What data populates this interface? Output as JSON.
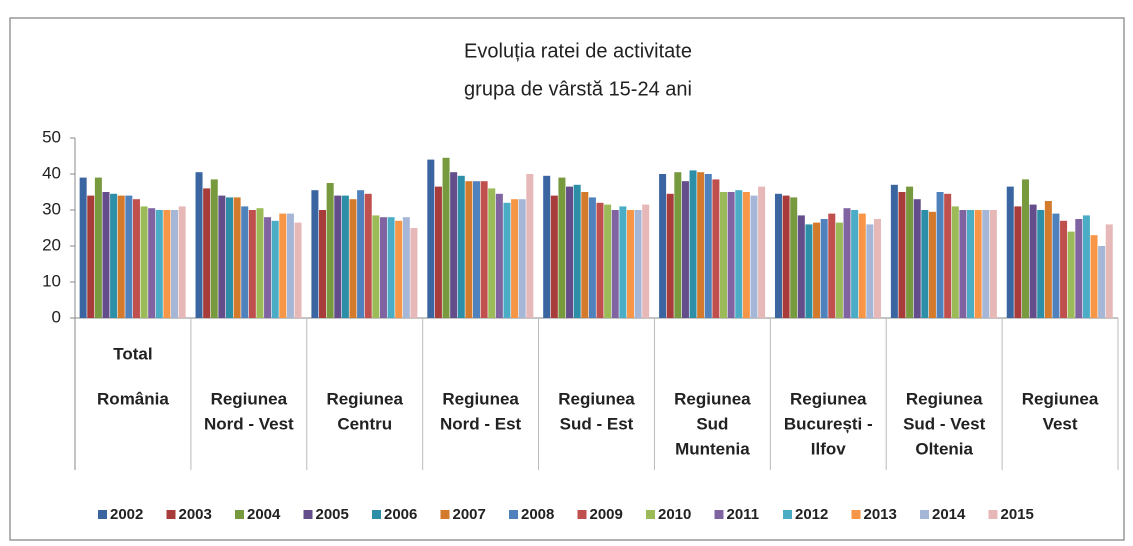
{
  "chart_data": {
    "type": "bar",
    "title": [
      "Evoluția ratei de activitate",
      "grupa de vârstă 15-24 ani"
    ],
    "categories": [
      [
        "Total",
        "România"
      ],
      [
        "Regiunea",
        "Nord - Vest"
      ],
      [
        "Regiunea",
        "Centru"
      ],
      [
        "Regiunea",
        "Nord - Est"
      ],
      [
        "Regiunea",
        "Sud - Est"
      ],
      [
        "Regiunea",
        "Sud",
        "Muntenia"
      ],
      [
        "Regiunea",
        "București -",
        "Ilfov"
      ],
      [
        "Regiunea",
        "Sud - Vest",
        "Oltenia"
      ],
      [
        "Regiunea",
        "Vest"
      ]
    ],
    "series": [
      {
        "name": "2002",
        "color": "#3a65a0",
        "values": [
          39,
          40.5,
          35.5,
          44,
          39.5,
          40,
          34.5,
          37,
          36.5
        ]
      },
      {
        "name": "2003",
        "color": "#a73c3a",
        "values": [
          34,
          36,
          30,
          36.5,
          34,
          34.5,
          34,
          35,
          31
        ]
      },
      {
        "name": "2004",
        "color": "#779a3f",
        "values": [
          39,
          38.5,
          37.5,
          44.5,
          39,
          40.5,
          33.5,
          36.5,
          38.5
        ]
      },
      {
        "name": "2005",
        "color": "#634d8a",
        "values": [
          35,
          34,
          34,
          40.5,
          36.5,
          38,
          28.5,
          33,
          31.5
        ]
      },
      {
        "name": "2006",
        "color": "#2d8ea8",
        "values": [
          34.5,
          33.5,
          34,
          39.5,
          37,
          41,
          26,
          30,
          30
        ]
      },
      {
        "name": "2007",
        "color": "#d47a2d",
        "values": [
          34,
          33.5,
          33,
          38,
          35,
          40.5,
          26.5,
          29.5,
          32.5
        ]
      },
      {
        "name": "2008",
        "color": "#4f81bd",
        "values": [
          34,
          31,
          35.5,
          38,
          33.5,
          40,
          27.5,
          35,
          29
        ]
      },
      {
        "name": "2009",
        "color": "#c0504d",
        "values": [
          33,
          30,
          34.5,
          38,
          32,
          38.5,
          29,
          34.5,
          27
        ]
      },
      {
        "name": "2010",
        "color": "#9bbb59",
        "values": [
          31,
          30.5,
          28.5,
          36,
          31.5,
          35,
          26.5,
          31,
          24
        ]
      },
      {
        "name": "2011",
        "color": "#8064a2",
        "values": [
          30.5,
          28,
          28,
          34.5,
          30,
          35,
          30.5,
          30,
          27.5
        ]
      },
      {
        "name": "2012",
        "color": "#4bacc6",
        "values": [
          30,
          27,
          28,
          32,
          31,
          35.5,
          30,
          30,
          28.5
        ]
      },
      {
        "name": "2013",
        "color": "#f79646",
        "values": [
          30,
          29,
          27,
          33,
          30,
          35,
          29,
          30,
          23
        ]
      },
      {
        "name": "2014",
        "color": "#a5b6d6",
        "values": [
          30,
          29,
          28,
          33,
          30,
          34,
          26,
          30,
          20
        ]
      },
      {
        "name": "2015",
        "color": "#e6b9b8",
        "values": [
          31,
          26.5,
          25,
          40,
          31.5,
          36.5,
          27.5,
          30,
          26
        ]
      }
    ],
    "ylim": [
      0,
      50
    ],
    "yticks": [
      0,
      10,
      20,
      30,
      40,
      50
    ],
    "grid": false
  }
}
